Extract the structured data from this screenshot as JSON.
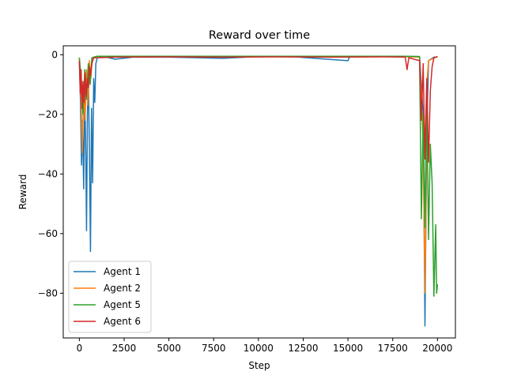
{
  "chart_data": {
    "type": "line",
    "title": "Reward over time",
    "xlabel": "Step",
    "ylabel": "Reward",
    "xlim": [
      -900,
      21000
    ],
    "ylim": [
      -95,
      3
    ],
    "xticks": [
      0,
      2500,
      5000,
      7500,
      10000,
      12500,
      15000,
      17500,
      20000
    ],
    "yticks": [
      0,
      -20,
      -40,
      -60,
      -80
    ],
    "grid": false,
    "legend_position": "lower-left",
    "series": [
      {
        "name": "Agent 1",
        "color": "#1f77b4",
        "points": [
          [
            0,
            -2
          ],
          [
            60,
            -15
          ],
          [
            120,
            -37
          ],
          [
            180,
            -22
          ],
          [
            240,
            -45
          ],
          [
            300,
            -10
          ],
          [
            360,
            -35
          ],
          [
            400,
            -59
          ],
          [
            450,
            -20
          ],
          [
            500,
            -5
          ],
          [
            560,
            -32
          ],
          [
            620,
            -66
          ],
          [
            680,
            -18
          ],
          [
            740,
            -43
          ],
          [
            800,
            -8
          ],
          [
            860,
            -16
          ],
          [
            920,
            -3
          ],
          [
            1000,
            -1
          ],
          [
            1500,
            -0.8
          ],
          [
            2000,
            -1.5
          ],
          [
            3000,
            -0.8
          ],
          [
            5000,
            -0.8
          ],
          [
            8000,
            -1.2
          ],
          [
            10000,
            -0.6
          ],
          [
            12000,
            -0.7
          ],
          [
            15000,
            -2.0
          ],
          [
            15100,
            -0.5
          ],
          [
            17500,
            -0.5
          ],
          [
            19000,
            -0.6
          ],
          [
            19200,
            -20
          ],
          [
            19300,
            -91
          ],
          [
            19400,
            -25
          ],
          [
            19500,
            -2
          ],
          [
            19800,
            -0.8
          ],
          [
            20000,
            -0.7
          ]
        ]
      },
      {
        "name": "Agent 2",
        "color": "#ff7f0e",
        "points": [
          [
            0,
            -1
          ],
          [
            80,
            -10
          ],
          [
            160,
            -33
          ],
          [
            240,
            -12
          ],
          [
            320,
            -22
          ],
          [
            400,
            -5
          ],
          [
            480,
            -17
          ],
          [
            560,
            -2
          ],
          [
            640,
            -8
          ],
          [
            720,
            -1
          ],
          [
            1000,
            -0.5
          ],
          [
            3000,
            -0.6
          ],
          [
            6000,
            -0.5
          ],
          [
            9000,
            -0.7
          ],
          [
            12000,
            -0.6
          ],
          [
            15000,
            -0.7
          ],
          [
            18000,
            -0.6
          ],
          [
            19000,
            -0.8
          ],
          [
            19200,
            -30
          ],
          [
            19300,
            -80
          ],
          [
            19350,
            -55
          ],
          [
            19400,
            -10
          ],
          [
            19500,
            -2
          ],
          [
            20000,
            -0.5
          ]
        ]
      },
      {
        "name": "Agent 5",
        "color": "#2ca02c",
        "points": [
          [
            0,
            -1
          ],
          [
            100,
            -8
          ],
          [
            200,
            -20
          ],
          [
            300,
            -5
          ],
          [
            400,
            -15
          ],
          [
            500,
            -3
          ],
          [
            600,
            -10
          ],
          [
            700,
            -1
          ],
          [
            1000,
            -0.5
          ],
          [
            3000,
            -0.5
          ],
          [
            6000,
            -0.5
          ],
          [
            9000,
            -0.5
          ],
          [
            12000,
            -0.5
          ],
          [
            15000,
            -0.5
          ],
          [
            18000,
            -0.5
          ],
          [
            19000,
            -0.6
          ],
          [
            19100,
            -55
          ],
          [
            19200,
            -20
          ],
          [
            19300,
            -58
          ],
          [
            19400,
            -15
          ],
          [
            19500,
            -62
          ],
          [
            19600,
            -30
          ],
          [
            19700,
            -43
          ],
          [
            19800,
            -81
          ],
          [
            19900,
            -57
          ],
          [
            19950,
            -80
          ],
          [
            20000,
            -77
          ]
        ]
      },
      {
        "name": "Agent 6",
        "color": "#d62728",
        "points": [
          [
            0,
            -2
          ],
          [
            50,
            -13
          ],
          [
            100,
            -5
          ],
          [
            150,
            -18
          ],
          [
            200,
            -9
          ],
          [
            260,
            -16
          ],
          [
            320,
            -6
          ],
          [
            380,
            -14
          ],
          [
            440,
            -8
          ],
          [
            500,
            -11
          ],
          [
            560,
            -4
          ],
          [
            620,
            -7
          ],
          [
            700,
            -3
          ],
          [
            800,
            -1
          ],
          [
            1000,
            -1
          ],
          [
            2000,
            -0.8
          ],
          [
            5000,
            -0.7
          ],
          [
            8000,
            -0.8
          ],
          [
            11000,
            -0.7
          ],
          [
            14000,
            -0.8
          ],
          [
            17000,
            -0.7
          ],
          [
            18200,
            -0.8
          ],
          [
            18300,
            -5
          ],
          [
            18400,
            -1
          ],
          [
            19000,
            -2
          ],
          [
            19100,
            -22
          ],
          [
            19200,
            -3
          ],
          [
            19300,
            -35
          ],
          [
            19400,
            -8
          ],
          [
            19500,
            -36
          ],
          [
            19600,
            -12
          ],
          [
            19700,
            -4
          ],
          [
            19800,
            -1
          ],
          [
            20000,
            -0.7
          ]
        ]
      }
    ]
  }
}
